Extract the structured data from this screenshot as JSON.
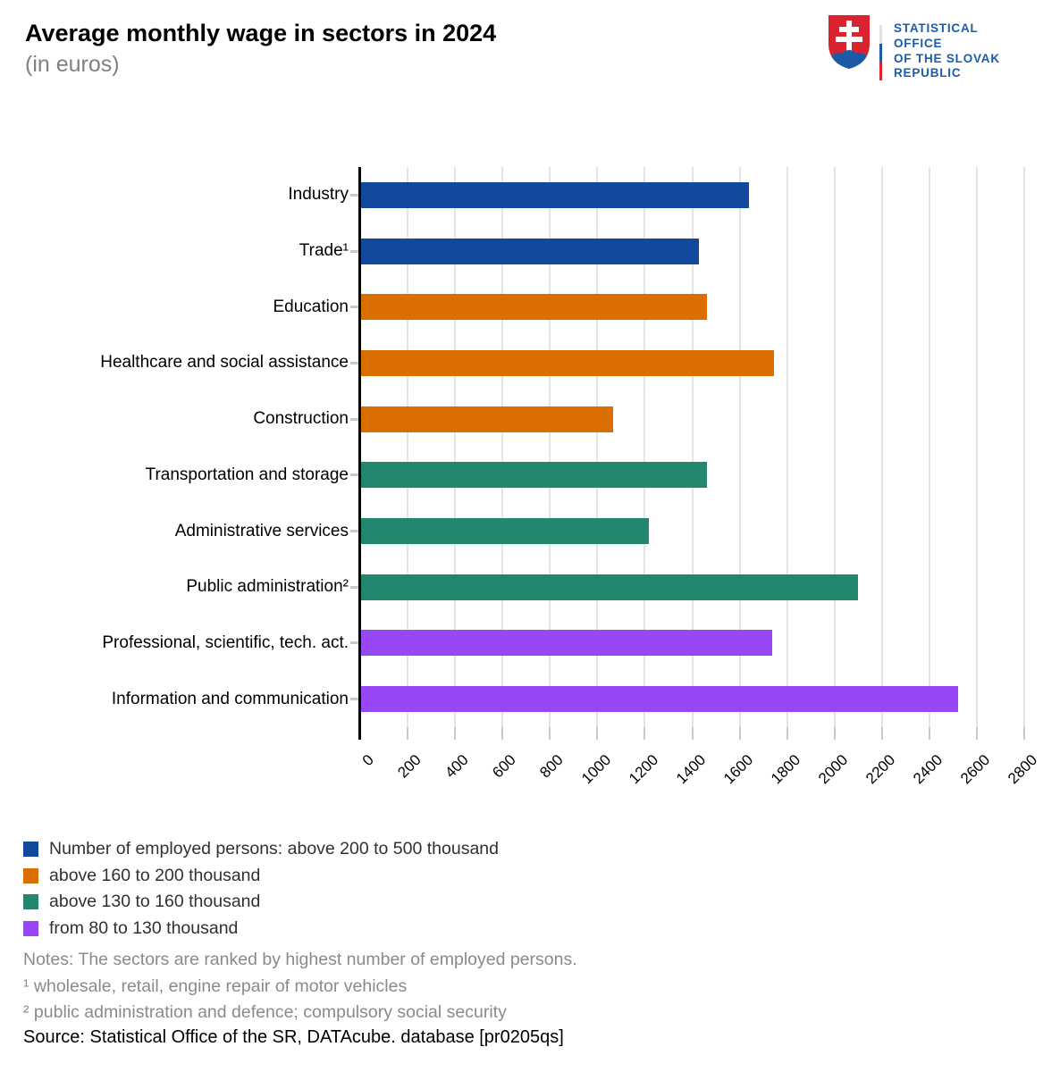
{
  "header": {
    "title": "Average monthly wage in sectors in 2024",
    "subtitle": "(in euros)",
    "logo": {
      "org_name_lines": [
        "STATISTICAL",
        "OFFICE",
        "OF THE SLOVAK",
        "REPUBLIC"
      ],
      "text_color": "#1A5CA8",
      "shield_red": "#D9232E",
      "shield_blue": "#1C5AA5",
      "divider_colors": [
        "#E3E3E3",
        "#1C5AA5",
        "#D9232E"
      ]
    }
  },
  "chart_data": {
    "type": "bar",
    "orientation": "horizontal",
    "title": "Average monthly wage in sectors in 2024",
    "subtitle": "(in euros)",
    "unit": "EUR",
    "categories": [
      "Industry",
      "Trade¹",
      "Education",
      "Healthcare and social assistance",
      "Construction",
      "Transportation and storage",
      "Administrative services",
      "Public administration²",
      "Professional, scientific, tech. act.",
      "Information and communication"
    ],
    "values": [
      1634,
      1426,
      1459,
      1742,
      1062,
      1460,
      1214,
      2094,
      1733,
      2517
    ],
    "bar_colors": [
      "#14489C",
      "#14489C",
      "#DB6E00",
      "#DB6E00",
      "#DB6E00",
      "#238770",
      "#238770",
      "#238770",
      "#9747F5",
      "#9747F5"
    ],
    "xlim": [
      0,
      2800
    ],
    "x_ticks": [
      0,
      200,
      400,
      600,
      800,
      1000,
      1200,
      1400,
      1600,
      1800,
      2000,
      2200,
      2400,
      2600,
      2800
    ],
    "x_tick_rotation_deg": -45,
    "grid": true,
    "legend_position": "bottom-left"
  },
  "legend": {
    "items": [
      {
        "label": "Number of employed persons: above 200 to 500 thousand",
        "color": "#14489C"
      },
      {
        "label": "above 160 to 200 thousand",
        "color": "#DB6E00"
      },
      {
        "label": "above 130 to 160 thousand",
        "color": "#238770"
      },
      {
        "label": "from 80 to 130 thousand",
        "color": "#9747F5"
      }
    ]
  },
  "notes": {
    "lines": [
      "Notes: The sectors are ranked by highest number of employed persons.",
      "¹ wholesale, retail, engine repair of motor vehicles",
      "² public administration and defence; compulsory social security"
    ]
  },
  "source": "Source: Statistical Office of the SR, DATAcube. database [pr0205qs]"
}
